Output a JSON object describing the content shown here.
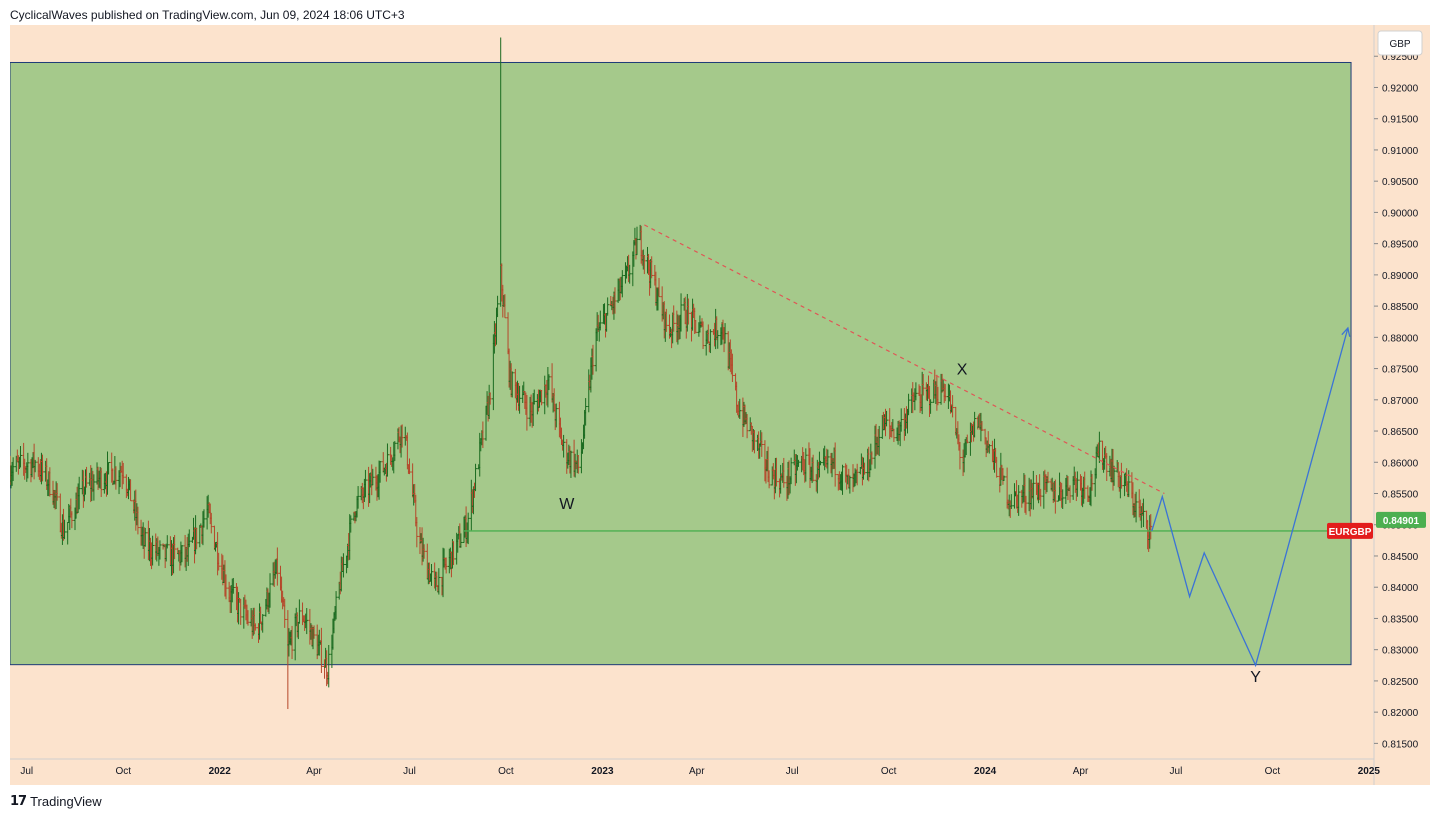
{
  "header": {
    "published_text": "CyclicalWaves published on TradingView.com, Jun 09, 2024 18:06 UTC+3"
  },
  "footer": {
    "brand": "TradingView",
    "logo_icon": "tradingview-logo-icon"
  },
  "chart_data": {
    "type": "ohlc",
    "symbol": "EURGBP",
    "currency_label": "GBP",
    "last_price_label": "0.84901",
    "last_price": 0.84901,
    "ylim": [
      0.8125,
      0.93
    ],
    "y_ticks": [
      "0.92500",
      "0.92000",
      "0.91500",
      "0.91000",
      "0.90500",
      "0.90000",
      "0.89500",
      "0.89000",
      "0.88500",
      "0.88000",
      "0.87500",
      "0.87000",
      "0.86500",
      "0.86000",
      "0.85500",
      "0.85000",
      "0.84500",
      "0.84000",
      "0.83500",
      "0.83000",
      "0.82500",
      "0.82000",
      "0.81500"
    ],
    "x_range": [
      "2021-06-15",
      "2025-01-04"
    ],
    "x_ticks": [
      {
        "label": "Jul",
        "date": "2021-07-01",
        "bold": false
      },
      {
        "label": "Oct",
        "date": "2021-10-01",
        "bold": false
      },
      {
        "label": "2022",
        "date": "2022-01-01",
        "bold": true
      },
      {
        "label": "Apr",
        "date": "2022-04-01",
        "bold": false
      },
      {
        "label": "Jul",
        "date": "2022-07-01",
        "bold": false
      },
      {
        "label": "Oct",
        "date": "2022-10-01",
        "bold": false
      },
      {
        "label": "2023",
        "date": "2023-01-01",
        "bold": true
      },
      {
        "label": "Apr",
        "date": "2023-04-01",
        "bold": false
      },
      {
        "label": "Jul",
        "date": "2023-07-01",
        "bold": false
      },
      {
        "label": "Oct",
        "date": "2023-10-01",
        "bold": false
      },
      {
        "label": "2024",
        "date": "2024-01-01",
        "bold": true
      },
      {
        "label": "Apr",
        "date": "2024-04-01",
        "bold": false
      },
      {
        "label": "Jul",
        "date": "2024-07-01",
        "bold": false
      },
      {
        "label": "Oct",
        "date": "2024-10-01",
        "bold": false
      },
      {
        "label": "2025",
        "date": "2025-01-01",
        "bold": true
      }
    ],
    "price_path": [
      [
        "2021-06-15",
        0.859
      ],
      [
        "2021-07-10",
        0.86
      ],
      [
        "2021-07-25",
        0.856
      ],
      [
        "2021-08-05",
        0.849
      ],
      [
        "2021-08-25",
        0.856
      ],
      [
        "2021-09-15",
        0.858
      ],
      [
        "2021-10-01",
        0.859
      ],
      [
        "2021-10-20",
        0.847
      ],
      [
        "2021-11-10",
        0.845
      ],
      [
        "2021-12-01",
        0.845
      ],
      [
        "2021-12-20",
        0.852
      ],
      [
        "2022-01-10",
        0.839
      ],
      [
        "2022-02-05",
        0.833
      ],
      [
        "2022-02-25",
        0.843
      ],
      [
        "2022-03-07",
        0.83
      ],
      [
        "2022-03-20",
        0.836
      ],
      [
        "2022-04-14",
        0.827
      ],
      [
        "2022-04-25",
        0.84
      ],
      [
        "2022-05-10",
        0.853
      ],
      [
        "2022-06-10",
        0.86
      ],
      [
        "2022-06-25",
        0.866
      ],
      [
        "2022-07-10",
        0.847
      ],
      [
        "2022-07-25",
        0.84
      ],
      [
        "2022-08-10",
        0.845
      ],
      [
        "2022-08-25",
        0.85
      ],
      [
        "2022-09-15",
        0.87
      ],
      [
        "2022-09-26",
        0.89
      ],
      [
        "2022-10-05",
        0.873
      ],
      [
        "2022-10-25",
        0.868
      ],
      [
        "2022-11-10",
        0.873
      ],
      [
        "2022-11-25",
        0.862
      ],
      [
        "2022-12-10",
        0.859
      ],
      [
        "2022-12-25",
        0.88
      ],
      [
        "2023-01-10",
        0.885
      ],
      [
        "2023-01-25",
        0.89
      ],
      [
        "2023-02-05",
        0.896
      ],
      [
        "2023-02-20",
        0.888
      ],
      [
        "2023-03-05",
        0.881
      ],
      [
        "2023-03-20",
        0.884
      ],
      [
        "2023-04-10",
        0.88
      ],
      [
        "2023-04-25",
        0.882
      ],
      [
        "2023-05-10",
        0.869
      ],
      [
        "2023-05-25",
        0.864
      ],
      [
        "2023-06-10",
        0.858
      ],
      [
        "2023-06-25",
        0.857
      ],
      [
        "2023-07-10",
        0.86
      ],
      [
        "2023-07-25",
        0.858
      ],
      [
        "2023-08-10",
        0.86
      ],
      [
        "2023-08-25",
        0.856
      ],
      [
        "2023-09-10",
        0.859
      ],
      [
        "2023-09-25",
        0.866
      ],
      [
        "2023-10-10",
        0.865
      ],
      [
        "2023-10-25",
        0.87
      ],
      [
        "2023-11-10",
        0.871
      ],
      [
        "2023-11-25",
        0.872
      ],
      [
        "2023-12-10",
        0.86
      ],
      [
        "2023-12-25",
        0.867
      ],
      [
        "2024-01-10",
        0.86
      ],
      [
        "2024-01-25",
        0.854
      ],
      [
        "2024-02-10",
        0.855
      ],
      [
        "2024-02-25",
        0.856
      ],
      [
        "2024-03-10",
        0.855
      ],
      [
        "2024-03-25",
        0.857
      ],
      [
        "2024-04-10",
        0.856
      ],
      [
        "2024-04-20",
        0.862
      ],
      [
        "2024-05-01",
        0.859
      ],
      [
        "2024-05-15",
        0.856
      ],
      [
        "2024-05-30",
        0.851
      ],
      [
        "2024-06-07",
        0.849
      ]
    ],
    "annotations": {
      "range_box": {
        "x0": "2021-06-15",
        "x1": "2024-12-15",
        "y_top": 0.924,
        "y_bottom": 0.8276,
        "fill": "#a5c98b",
        "stroke": "#1e3a78"
      },
      "support_line": {
        "x0": "2022-08-22",
        "x1": "2024-12-15",
        "y": 0.84901,
        "color": "#4caf50"
      },
      "trendline": {
        "from": [
          "2023-02-10",
          0.898
        ],
        "to": [
          "2024-06-20",
          0.855
        ],
        "color": "#e05555"
      },
      "projection": {
        "color": "#3b73d6",
        "points": [
          [
            "2024-06-08",
            0.849
          ],
          [
            "2024-06-18",
            0.8545
          ],
          [
            "2024-07-14",
            0.8385
          ],
          [
            "2024-07-28",
            0.8455
          ],
          [
            "2024-09-15",
            0.8275
          ],
          [
            "2024-12-12",
            0.8815
          ]
        ]
      },
      "wave_labels": [
        {
          "text": "W",
          "date": "2022-11-28",
          "price": 0.8532
        },
        {
          "text": "X",
          "date": "2023-12-10",
          "price": 0.8747
        },
        {
          "text": "Y",
          "date": "2024-09-15",
          "price": 0.8255
        }
      ],
      "spike_high": {
        "date": "2022-09-26",
        "price": 0.928
      },
      "spike_low": {
        "date": "2022-03-07",
        "price": 0.8205
      }
    },
    "colors": {
      "background": "#fce3cd",
      "axis_text": "#131722",
      "bar_up": "#1b6b20",
      "bar_down": "#b5472a",
      "symbol_badge": "#e31c1c",
      "price_badge": "#4caf50"
    },
    "grid": false
  }
}
